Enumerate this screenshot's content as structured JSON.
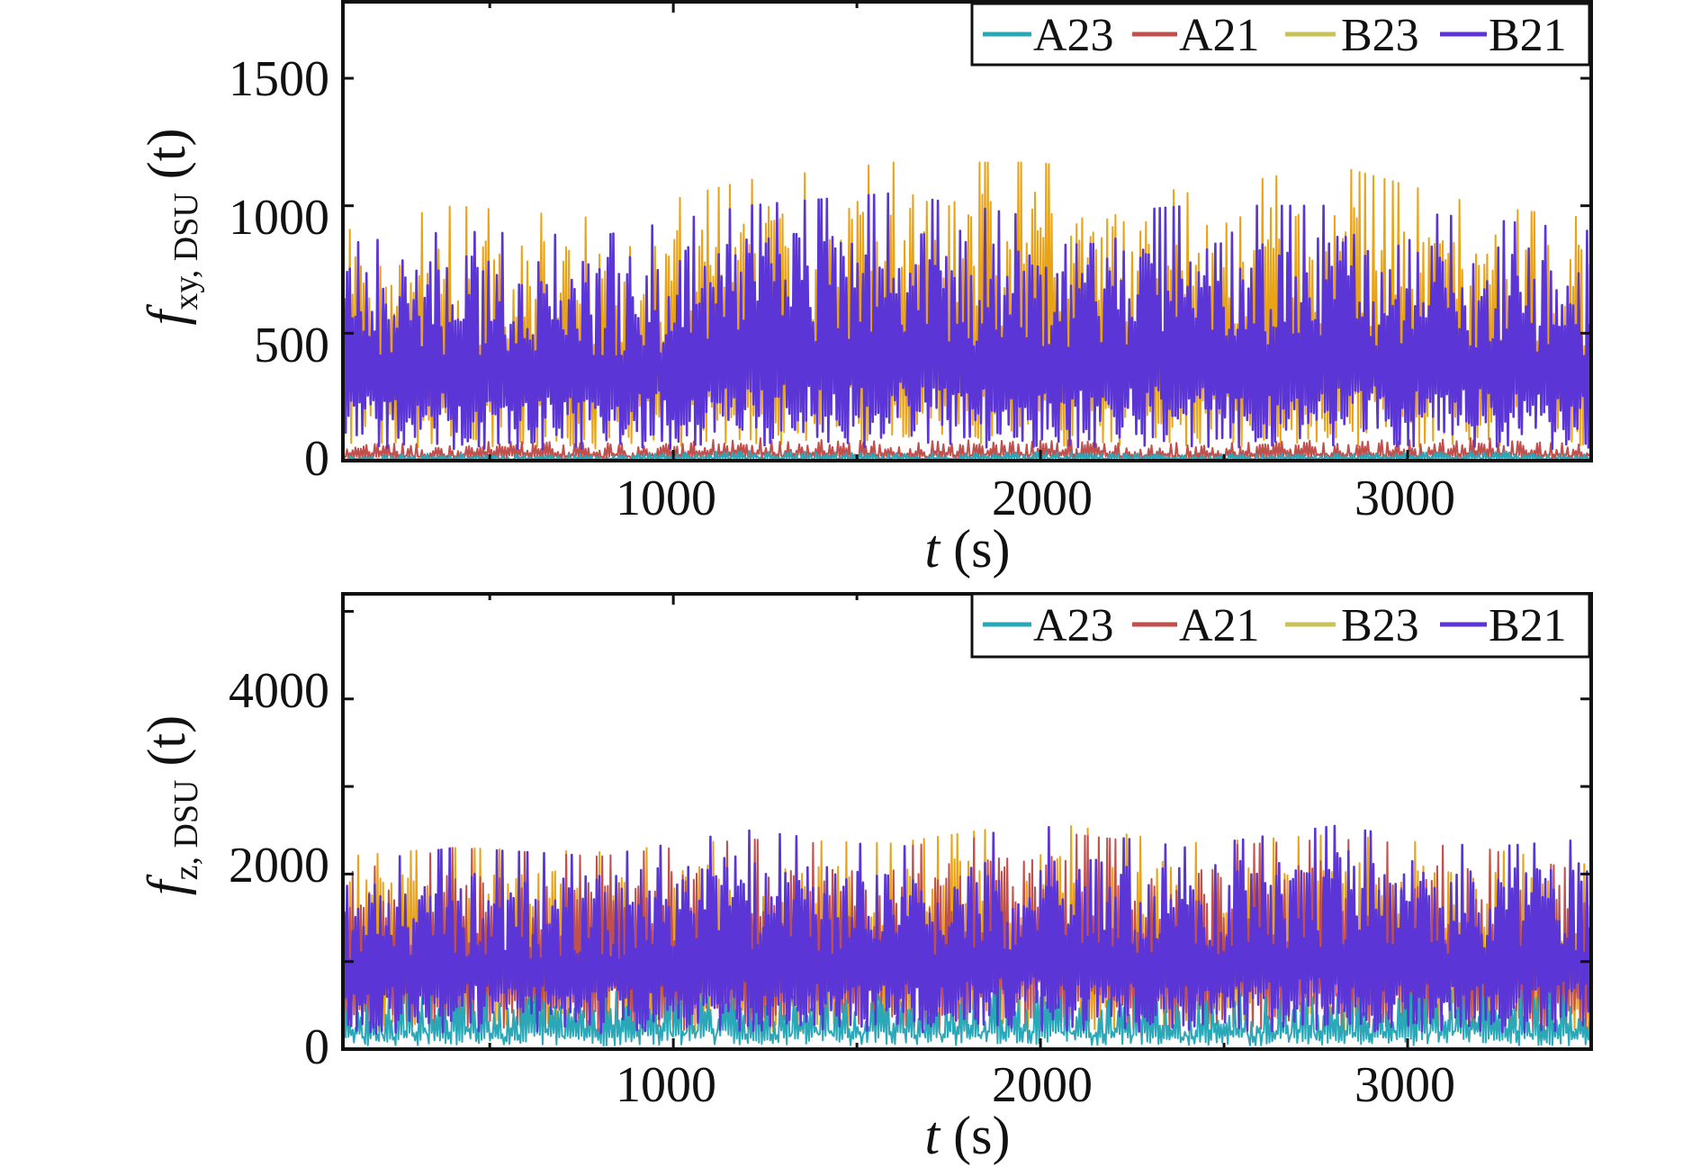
{
  "chart_data": [
    {
      "type": "line",
      "panel": "top",
      "xlabel": "t (s)",
      "xlabel_italic": "t",
      "xlabel_unit": " (s)",
      "ylabel": "f_{xy, DSU} (t)",
      "ylabel_main": "f",
      "ylabel_sub": "xy, DSU",
      "ylabel_unit": " (t)",
      "xlim": [
        100,
        3500
      ],
      "ylim": [
        0,
        1800
      ],
      "xticks": [
        1000,
        2000,
        3000
      ],
      "yticks": [
        0,
        500,
        1000,
        1500
      ],
      "xtick_labels": [
        "1000",
        "2000",
        "3000"
      ],
      "ytick_labels": [
        "0",
        "500",
        "1000",
        "1500"
      ],
      "legend_position": "top-right",
      "grid": false,
      "series": [
        {
          "name": "A23",
          "color": "#2aa8b8",
          "x": [
            100,
            400,
            800,
            1200,
            1600,
            2000,
            2400,
            2800,
            3200,
            3500
          ],
          "values": [
            20,
            30,
            25,
            40,
            30,
            35,
            25,
            30,
            40,
            25
          ]
        },
        {
          "name": "A21",
          "color": "#c0504d",
          "x": [
            100,
            400,
            800,
            1200,
            1600,
            2000,
            2400,
            2800,
            3200,
            3500
          ],
          "values": [
            60,
            80,
            70,
            90,
            75,
            85,
            70,
            80,
            90,
            70
          ]
        },
        {
          "name": "B23",
          "color": "#e8a317",
          "x": [
            100,
            400,
            800,
            1200,
            1600,
            2000,
            2400,
            2800,
            3200,
            3500
          ],
          "values": [
            900,
            1000,
            950,
            1100,
            1170,
            1170,
            1050,
            1160,
            1000,
            950
          ]
        },
        {
          "name": "B21",
          "color": "#5b35d5",
          "x": [
            100,
            400,
            800,
            1200,
            1600,
            2000,
            2400,
            2800,
            3200,
            3500
          ],
          "values": [
            850,
            900,
            880,
            1000,
            1050,
            950,
            1000,
            1000,
            950,
            900
          ]
        }
      ]
    },
    {
      "type": "line",
      "panel": "bottom",
      "xlabel": "t (s)",
      "xlabel_italic": "t",
      "xlabel_unit": " (s)",
      "ylabel": "f_{z, DSU} (t)",
      "ylabel_main": "f",
      "ylabel_sub": "z, DSU",
      "ylabel_unit": " (t)",
      "xlim": [
        100,
        3500
      ],
      "ylim": [
        0,
        5200
      ],
      "xticks": [
        1000,
        2000,
        3000
      ],
      "yticks": [
        0,
        2000,
        4000
      ],
      "minor_yticks": [
        1000,
        3000,
        5000
      ],
      "xtick_labels": [
        "1000",
        "2000",
        "3000"
      ],
      "ytick_labels": [
        "0",
        "2000",
        "4000"
      ],
      "legend_position": "top-right",
      "grid": false,
      "series": [
        {
          "name": "A23",
          "color": "#2aa8b8",
          "x": [
            100,
            400,
            800,
            1200,
            1600,
            2000,
            2400,
            2800,
            3200,
            3500
          ],
          "values": [
            600,
            700,
            650,
            800,
            700,
            750,
            650,
            700,
            750,
            600
          ]
        },
        {
          "name": "A21",
          "color": "#c0504d",
          "x": [
            100,
            400,
            800,
            1200,
            1600,
            2000,
            2400,
            2800,
            3200,
            3500
          ],
          "values": [
            2000,
            2300,
            2200,
            2400,
            2300,
            2500,
            2300,
            2400,
            2300,
            2000
          ]
        },
        {
          "name": "B23",
          "color": "#e8a317",
          "x": [
            100,
            400,
            800,
            1200,
            1600,
            2000,
            2400,
            2800,
            3200,
            3500
          ],
          "values": [
            2200,
            2300,
            2250,
            2400,
            2350,
            2600,
            2350,
            2450,
            2300,
            2100
          ]
        },
        {
          "name": "B21",
          "color": "#5b35d5",
          "x": [
            100,
            400,
            800,
            1200,
            1600,
            2000,
            2400,
            2800,
            3200,
            3500
          ],
          "values": [
            2100,
            2300,
            2200,
            2500,
            2300,
            2550,
            2300,
            2550,
            2300,
            2400
          ]
        }
      ]
    }
  ]
}
